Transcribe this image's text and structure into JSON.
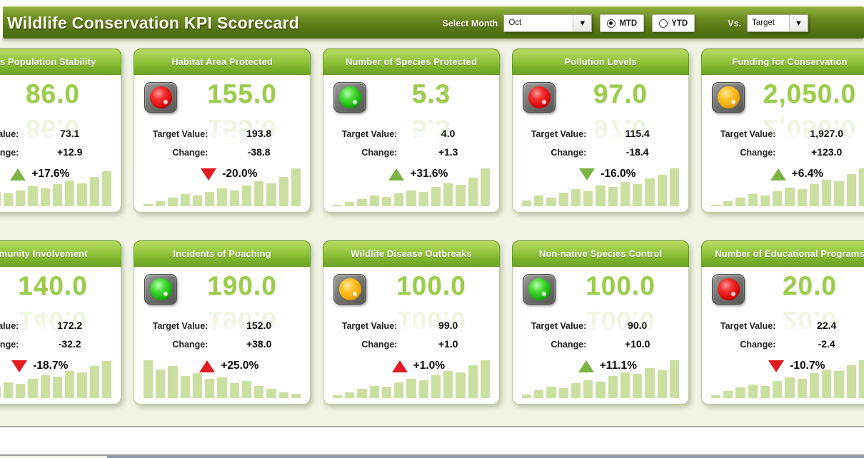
{
  "header": {
    "title": "Wildlife Conservation KPI Scorecard",
    "select_month_label": "Select Month",
    "month_value": "Oct",
    "mtd_label": "MTD",
    "ytd_label": "YTD",
    "mtd_selected": true,
    "vs_label": "Vs.",
    "vs_value": "Target"
  },
  "labels": {
    "target": "Target Value:",
    "change": "Change:"
  },
  "colors": {
    "banner_green": "#5e7d18",
    "card_header_green": "#8abf33",
    "value_green": "#9bcd4a",
    "bar_green": "#cbe0a0",
    "up_green": "#7cb342",
    "down_red": "#e11b22",
    "amber_light": "#f0a500"
  },
  "cards": [
    {
      "title": "Species Population Stability",
      "light": null,
      "value": "86.0",
      "target": "73.1",
      "change": "+12.9",
      "pct": "+17.6%",
      "trend": "up",
      "trend_color": "green",
      "bars": [
        8,
        16,
        26,
        36,
        32,
        40,
        50,
        44,
        56,
        64,
        58,
        74,
        88
      ]
    },
    {
      "title": "Habitat Area Protected",
      "light": "red",
      "value": "155.0",
      "target": "193.8",
      "change": "-38.8",
      "pct": "-20.0%",
      "trend": "down",
      "trend_color": "red",
      "bars": [
        5,
        12,
        22,
        30,
        27,
        36,
        44,
        40,
        52,
        62,
        58,
        74,
        95
      ]
    },
    {
      "title": "Number of Species Protected",
      "light": "green",
      "value": "5.3",
      "target": "4.0",
      "change": "+1.3",
      "pct": "+31.6%",
      "trend": "up",
      "trend_color": "green",
      "bars": [
        4,
        10,
        18,
        26,
        23,
        32,
        40,
        36,
        48,
        58,
        54,
        72,
        95
      ]
    },
    {
      "title": "Pollution Levels",
      "light": "red",
      "value": "97.0",
      "target": "115.4",
      "change": "-18.4",
      "pct": "-16.0%",
      "trend": "down",
      "trend_color": "green",
      "bars": [
        14,
        26,
        22,
        34,
        42,
        38,
        52,
        48,
        60,
        56,
        70,
        78,
        95
      ]
    },
    {
      "title": "Funding for Conservation",
      "light": "amber",
      "value": "2,050.0",
      "target": "1,927.0",
      "change": "+123.0",
      "pct": "+6.4%",
      "trend": "up",
      "trend_color": "green",
      "bars": [
        4,
        12,
        22,
        30,
        27,
        38,
        46,
        42,
        56,
        66,
        62,
        80,
        95
      ]
    },
    {
      "title": "Community Involvement",
      "light": null,
      "value": "140.0",
      "target": "172.2",
      "change": "-32.2",
      "pct": "-18.7%",
      "trend": "down",
      "trend_color": "red",
      "bars": [
        12,
        22,
        18,
        30,
        40,
        36,
        48,
        58,
        54,
        68,
        64,
        80,
        92
      ]
    },
    {
      "title": "Incidents of Poaching",
      "light": "green",
      "value": "190.0",
      "target": "152.0",
      "change": "+38.0",
      "pct": "+25.0%",
      "trend": "up",
      "trend_color": "red",
      "bars": [
        95,
        72,
        80,
        55,
        62,
        48,
        52,
        38,
        42,
        30,
        24,
        14,
        10
      ]
    },
    {
      "title": "Wildlife Disease Outbreaks",
      "light": "amber",
      "value": "100.0",
      "target": "99.0",
      "change": "+1.0",
      "pct": "+1.0%",
      "trend": "up",
      "trend_color": "red",
      "bars": [
        7,
        15,
        23,
        31,
        28,
        40,
        48,
        44,
        58,
        68,
        64,
        82,
        95
      ]
    },
    {
      "title": "Non-native Species Control",
      "light": "green",
      "value": "100.0",
      "target": "90.0",
      "change": "+10.0",
      "pct": "+11.1%",
      "trend": "up",
      "trend_color": "green",
      "bars": [
        9,
        19,
        29,
        25,
        37,
        45,
        41,
        55,
        65,
        61,
        75,
        70,
        95
      ]
    },
    {
      "title": "Number of Educational Programs",
      "light": "red",
      "value": "20.0",
      "target": "22.4",
      "change": "-2.4",
      "pct": "-10.7%",
      "trend": "down",
      "trend_color": "red",
      "bars": [
        8,
        18,
        26,
        34,
        30,
        42,
        52,
        48,
        62,
        72,
        68,
        82,
        95
      ]
    }
  ]
}
